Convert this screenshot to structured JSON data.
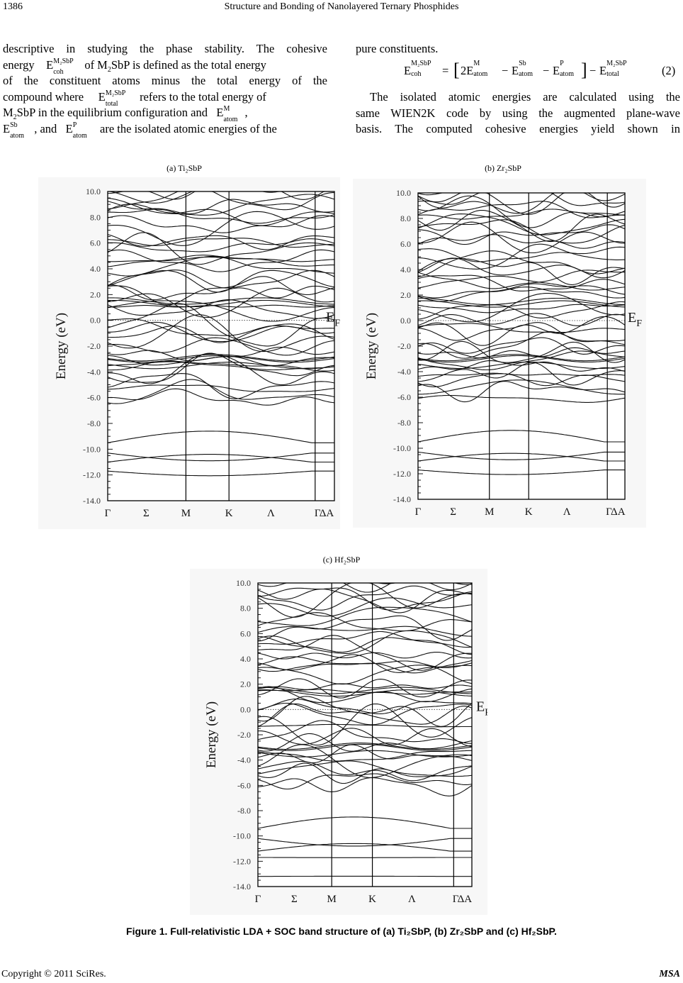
{
  "header": {
    "page_number": "1386",
    "running_title": "Structure and Bonding of Nanolayered Ternary Phosphides"
  },
  "left_column": {
    "line1": "descriptive in studying the phase stability. The cohesive",
    "line2_a": "energy",
    "line2_b": "of M",
    "line2_c": "SbP is defined as the total energy",
    "line3": "of the constituent atoms minus the total energy of the",
    "line4_a": "compound where",
    "line4_b": "refers to the total energy of",
    "line5_a": "M",
    "line5_b": "SbP in the equilibrium configuration and",
    "line6_a": ", and",
    "line6_b": "are the isolated atomic energies of the"
  },
  "right_column": {
    "line1": "pure constituents.",
    "equation_number": "(2)",
    "line3": "The isolated atomic energies are calculated using the",
    "line4": "same WIEN2K code by using the augmented plane-wave",
    "line5": "basis. The computed cohesive energies yield shown in"
  },
  "symbols": {
    "E": "E",
    "coh": "coh",
    "total": "total",
    "atom": "atom",
    "M2SbP": "M₂SbP",
    "M": "M",
    "Sb": "Sb",
    "P": "P",
    "two": "2",
    "two_E": "2E"
  },
  "panel_captions": {
    "a": "(a) Ti₂SbP",
    "b": "(b) Zr₂SbP",
    "c": "(c) Hf₂SbP"
  },
  "figure_caption": "Figure 1. Full-relativistic LDA + SOC band structure of (a) Ti₂SbP, (b) Zr₂SbP and (c) Hf₂SbP.",
  "footer": {
    "copyright": "Copyright © 2011 SciRes.",
    "journal": "MSA"
  },
  "chart_data": [
    {
      "type": "line",
      "title": "(a) Ti₂SbP",
      "ylabel": "Energy (eV)",
      "ylim": [
        -14.0,
        10.0
      ],
      "y_ticks": [
        "10.0",
        "8.0",
        "6.0",
        "4.0",
        "2.0",
        "0.0",
        "-2.0",
        "-4.0",
        "-6.0",
        "-8.0",
        "-10.0",
        "-12.0",
        "-14.0"
      ],
      "k_labels": [
        "Γ",
        "Σ",
        "M",
        "K",
        "Λ",
        "ΓΔA"
      ],
      "fermi_label": "E",
      "fermi_sub": "F",
      "fermi_level": 0.0,
      "bands_note": "numerous band curves; low-lying bands near -9 to -12 eV"
    },
    {
      "type": "line",
      "title": "(b) Zr₂SbP",
      "ylabel": "Energy (eV)",
      "ylim": [
        -14.0,
        10.0
      ],
      "y_ticks": [
        "10.0",
        "8.0",
        "6.0",
        "4.0",
        "2.0",
        "0.0",
        "-2.0",
        "-4.0",
        "-6.0",
        "-8.0",
        "-10.0",
        "-12.0",
        "-14.0"
      ],
      "k_labels": [
        "Γ",
        "Σ",
        "M",
        "K",
        "Λ",
        "ΓΔA"
      ],
      "fermi_label": "E",
      "fermi_sub": "F",
      "fermi_level": 0.0
    },
    {
      "type": "line",
      "title": "(c) Hf₂SbP",
      "ylabel": "Energy (eV)",
      "ylim": [
        -14.0,
        10.0
      ],
      "y_ticks": [
        "10.0",
        "8.0",
        "6.0",
        "4.0",
        "2.0",
        "0.0",
        "-2.0",
        "-4.0",
        "-6.0",
        "-8.0",
        "-10.0",
        "-12.0",
        "-14.0"
      ],
      "k_labels": [
        "Γ",
        "Σ",
        "M",
        "K",
        "Λ",
        "ΓΔA"
      ],
      "fermi_label": "E",
      "fermi_sub": "F",
      "fermi_level": 0.0
    }
  ]
}
